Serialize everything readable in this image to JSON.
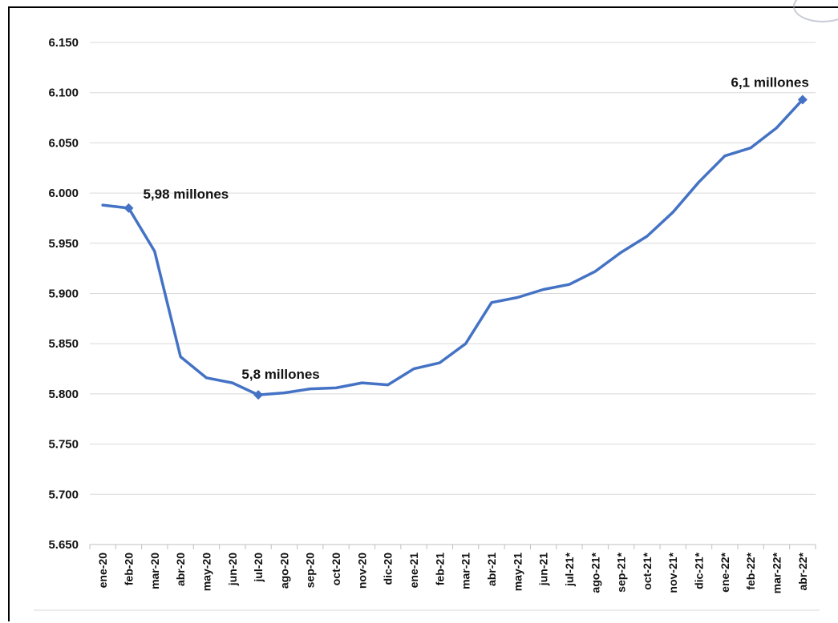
{
  "chart_data": {
    "type": "line",
    "title": "",
    "xlabel": "",
    "ylabel": "",
    "ylim": [
      5650,
      6150
    ],
    "y_ticks": [
      "5.650",
      "5.700",
      "5.750",
      "5.800",
      "5.850",
      "5.900",
      "5.950",
      "6.000",
      "6.050",
      "6.100",
      "6.150"
    ],
    "y_tick_values": [
      5650,
      5700,
      5750,
      5800,
      5850,
      5900,
      5950,
      6000,
      6050,
      6100,
      6150
    ],
    "grid": true,
    "legend": "none",
    "categories": [
      "ene-20",
      "feb-20",
      "mar-20",
      "abr-20",
      "may-20",
      "jun-20",
      "jul-20",
      "ago-20",
      "sep-20",
      "oct-20",
      "nov-20",
      "dic-20",
      "ene-21",
      "feb-21",
      "mar-21",
      "abr-21",
      "may-21",
      "jun-21",
      "jul-21*",
      "ago-21*",
      "sep-21*",
      "oct-21*",
      "nov-21*",
      "dic-21*",
      "ene-22*",
      "feb-22*",
      "mar-22*",
      "abr-22*"
    ],
    "series": [
      {
        "values": [
          5988,
          5985,
          5942,
          5837,
          5816,
          5811,
          5799,
          5801,
          5805,
          5806,
          5811,
          5809,
          5825,
          5831,
          5850,
          5891,
          5896,
          5904,
          5909,
          5922,
          5941,
          5957,
          5981,
          6011,
          6037,
          6045,
          6065,
          6093
        ],
        "color": "#4472c4"
      }
    ],
    "annotations": [
      {
        "text": "5,98 millones",
        "category_index": 1,
        "value": 5985
      },
      {
        "text": "5,8 millones",
        "category_index": 6,
        "value": 5799
      },
      {
        "text": "6,1 millones",
        "category_index": 27,
        "value": 6093
      }
    ]
  }
}
